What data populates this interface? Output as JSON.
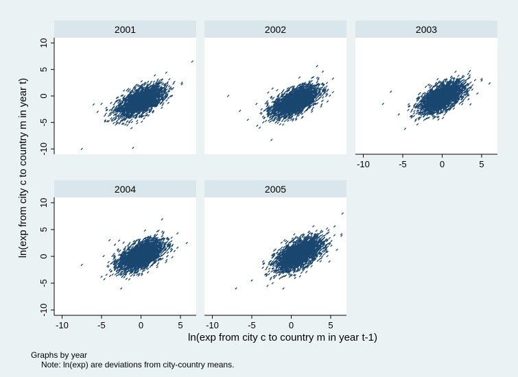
{
  "chart_data": {
    "type": "scatter",
    "by_label": "Graphs by year",
    "note": "Note: ln(exp) are deviations from city-country means.",
    "xlabel": "ln(exp from city c to country m in year t-1)",
    "ylabel": "ln(exp from city c to country m in year t)",
    "xlim": [
      -11,
      7
    ],
    "ylim": [
      -11,
      11
    ],
    "xticks": [
      -10,
      -5,
      0,
      5
    ],
    "yticks": [
      -10,
      -5,
      0,
      5,
      10
    ],
    "grid": false,
    "marker_color": "#1a476f",
    "panels": [
      {
        "title": "2001",
        "cloud": {
          "n": 2600,
          "mean_x": 0.0,
          "mean_y": -1.0,
          "sd_x": 1.45,
          "sd_y": 1.45,
          "corr": 0.6
        },
        "outliers": [
          [
            6.5,
            6.5
          ],
          [
            -7.5,
            -10
          ],
          [
            -1,
            -9.8
          ],
          [
            3.2,
            4.4
          ],
          [
            -6,
            -1.6
          ],
          [
            -5,
            -1.5
          ],
          [
            -5.5,
            -3
          ]
        ]
      },
      {
        "title": "2002",
        "cloud": {
          "n": 2600,
          "mean_x": 0.5,
          "mean_y": -1.0,
          "sd_x": 1.45,
          "sd_y": 1.45,
          "corr": 0.6
        },
        "outliers": [
          [
            -8,
            0
          ],
          [
            -2.5,
            -8.3
          ],
          [
            4,
            4.6
          ],
          [
            -6.5,
            -2.8
          ],
          [
            -4,
            -6
          ],
          [
            -5.5,
            -4.5
          ]
        ]
      },
      {
        "title": "2003",
        "cloud": {
          "n": 2600,
          "mean_x": 0.0,
          "mean_y": -0.3,
          "sd_x": 1.4,
          "sd_y": 1.45,
          "corr": 0.6
        },
        "outliers": [
          [
            -7.5,
            -1.5
          ],
          [
            -6.5,
            0.8
          ],
          [
            3.5,
            4.7
          ],
          [
            -4.7,
            -6.2
          ],
          [
            -5.5,
            -3.5
          ]
        ]
      },
      {
        "title": "2004",
        "cloud": {
          "n": 2600,
          "mean_x": 0.0,
          "mean_y": 0.2,
          "sd_x": 1.4,
          "sd_y": 1.45,
          "corr": 0.55
        },
        "outliers": [
          [
            -7.5,
            -1.6
          ],
          [
            5.8,
            2.5
          ],
          [
            -5,
            -3.8
          ],
          [
            -2.5,
            -6
          ],
          [
            -4,
            3
          ]
        ]
      },
      {
        "title": "2005",
        "cloud": {
          "n": 2600,
          "mean_x": 1.0,
          "mean_y": 0.4,
          "sd_x": 1.5,
          "sd_y": 1.55,
          "corr": 0.6
        },
        "outliers": [
          [
            -7,
            -6
          ],
          [
            6.5,
            8
          ],
          [
            5.5,
            5.6
          ],
          [
            -1,
            -6
          ],
          [
            -5,
            -4.5
          ],
          [
            -3,
            -5.5
          ]
        ]
      }
    ]
  }
}
